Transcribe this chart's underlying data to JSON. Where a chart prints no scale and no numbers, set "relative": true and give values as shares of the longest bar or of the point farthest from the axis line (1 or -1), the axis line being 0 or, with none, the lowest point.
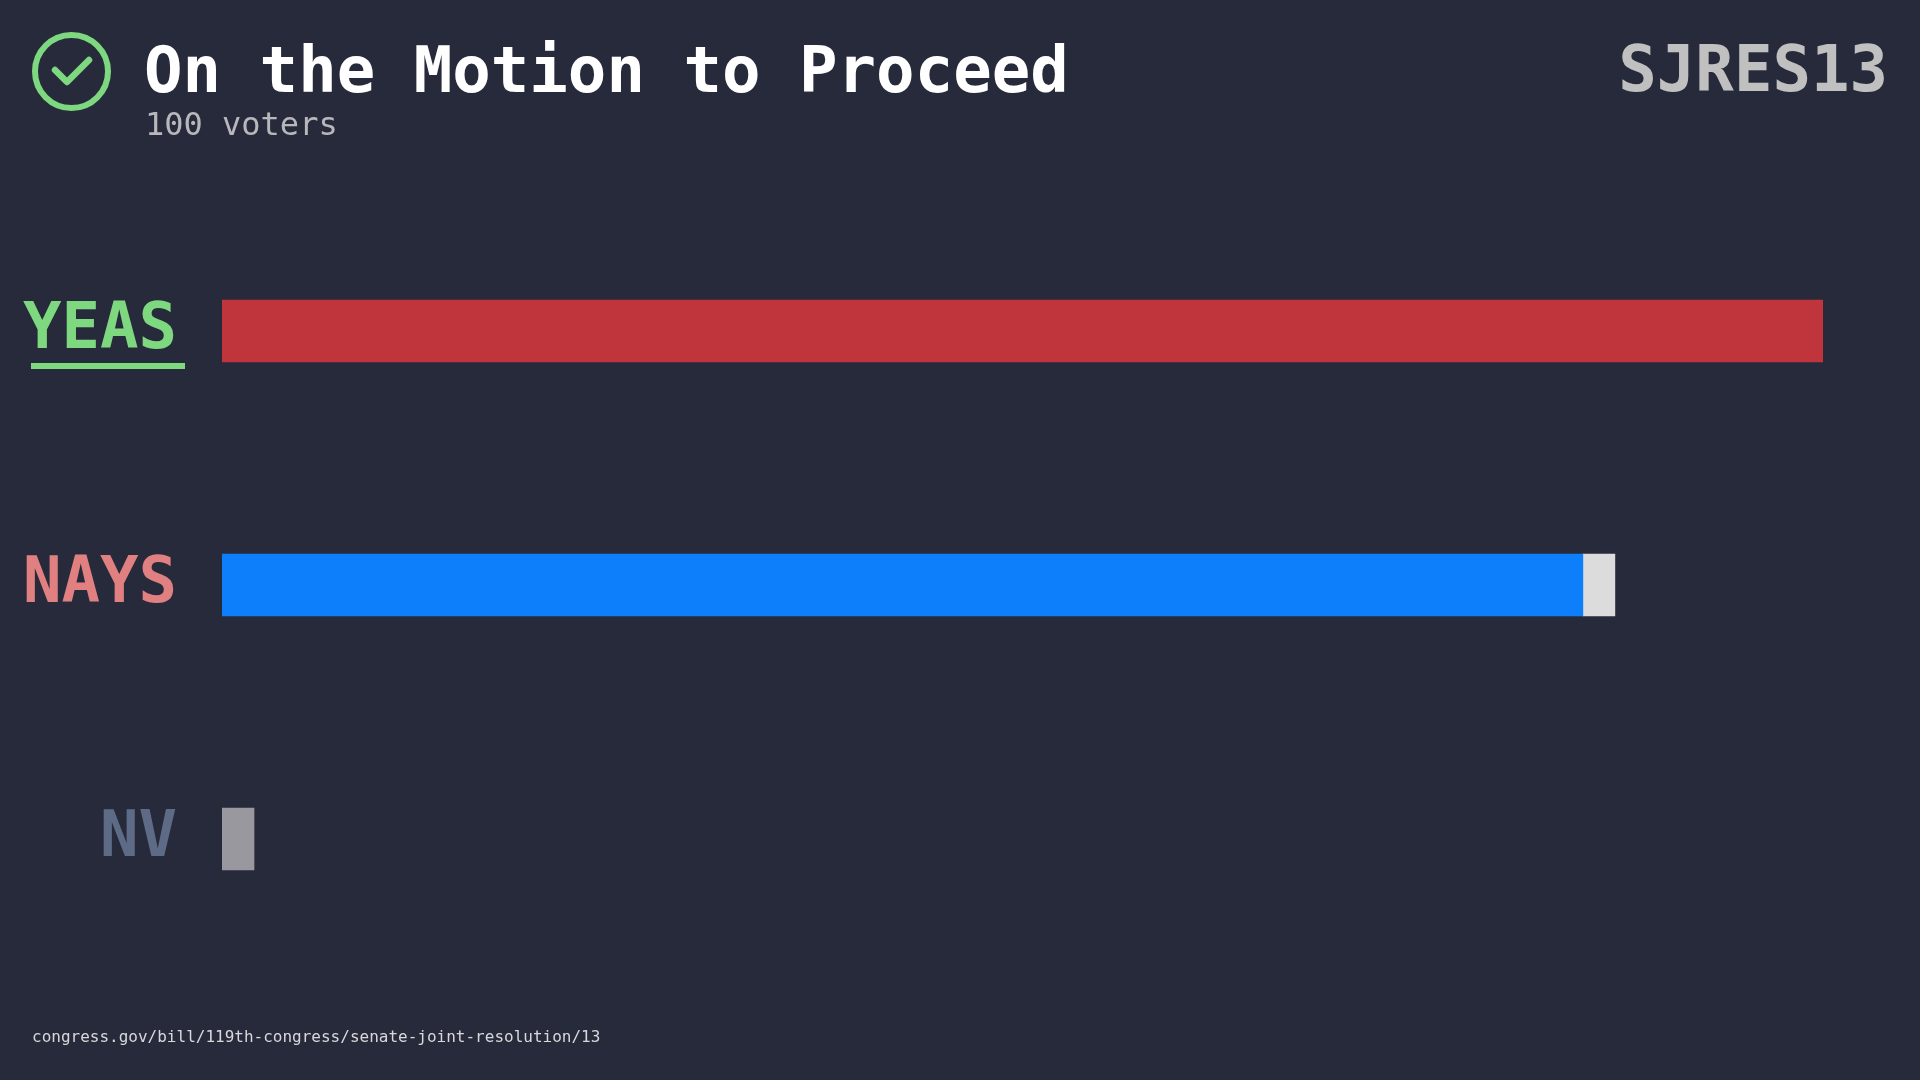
{
  "chart_data": {
    "type": "bar",
    "title": "On the Motion to Proceed",
    "subtitle": "100 voters",
    "categories": [
      "YEAS",
      "NAYS",
      "NV"
    ],
    "orientation": "horizontal",
    "stacked": true,
    "relative": true,
    "tick_labels": "y",
    "series": [
      {
        "color": "#c0343c",
        "values": [
          1,
          null,
          null
        ]
      },
      {
        "color": "#0d7ffb",
        "values": [
          null,
          0.85,
          null
        ]
      },
      {
        "color": "#dcdcdc",
        "values": [
          null,
          0.02,
          null
        ]
      },
      {
        "color": "#98989e",
        "values": [
          null,
          null,
          0.02
        ]
      }
    ],
    "annotations": [
      "SJRES13",
      "congress.gov/bill/119th-congress/senate-joint-resolution/13"
    ]
  }
}
